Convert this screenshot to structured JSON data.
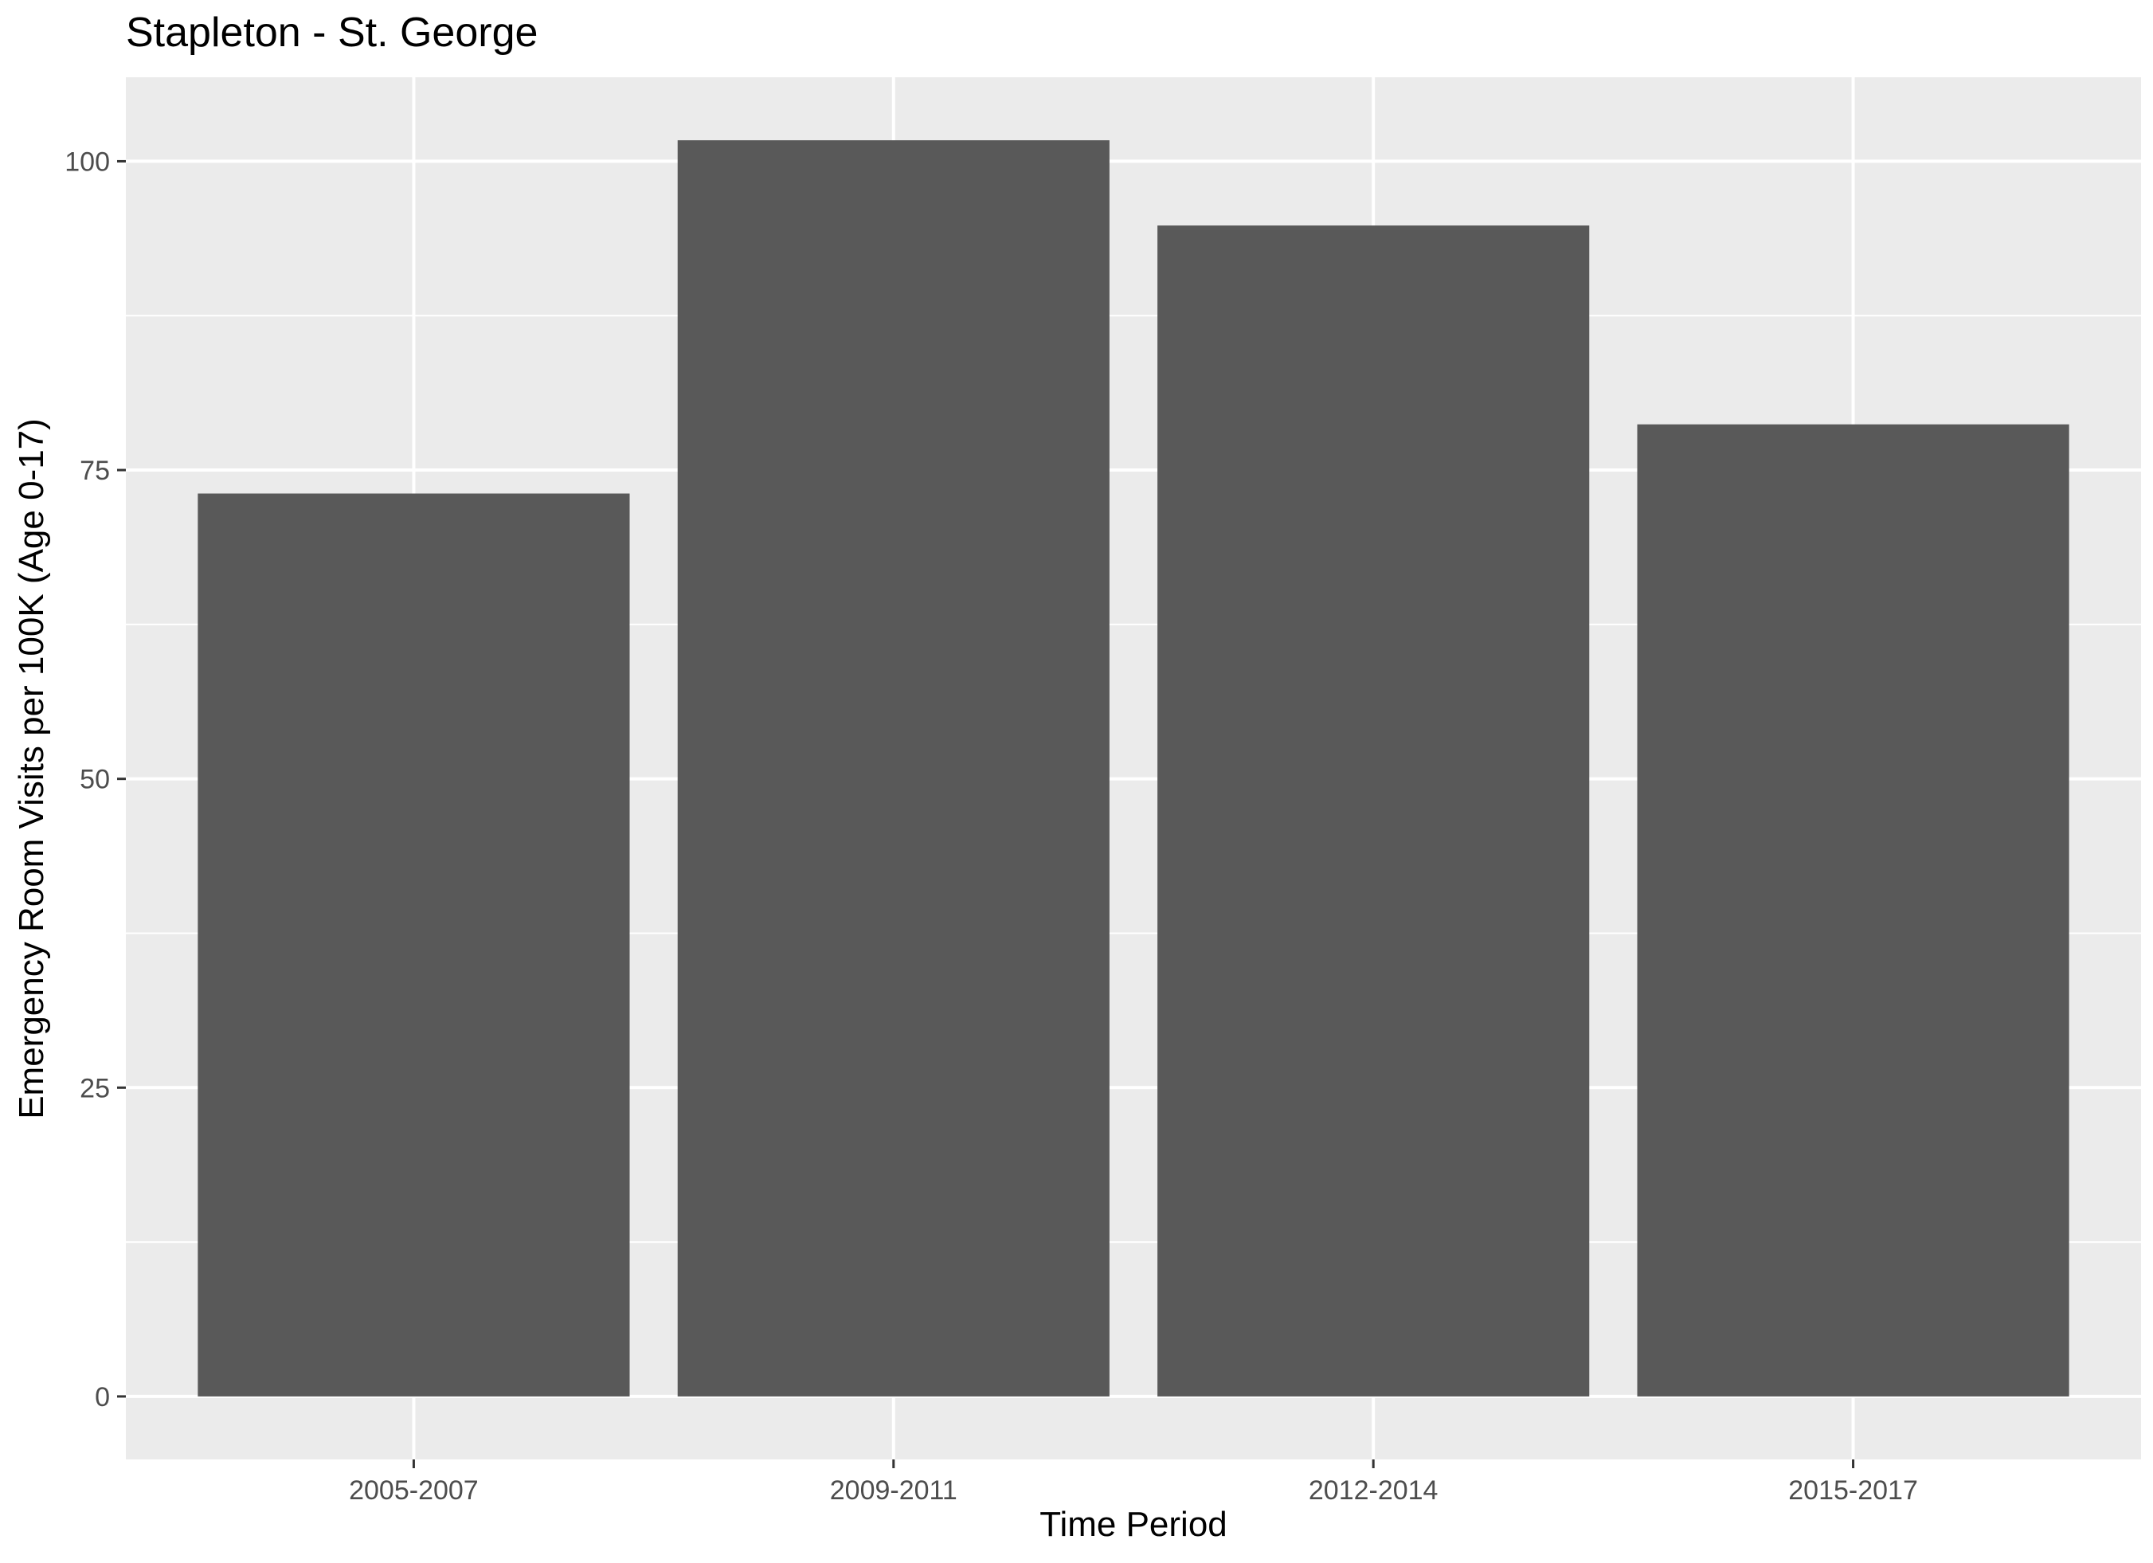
{
  "chart_data": {
    "type": "bar",
    "title": "Stapleton - St. George",
    "xlabel": "Time Period",
    "ylabel": "Emergency Room Visits per 100K (Age 0-17)",
    "categories": [
      "2005-2007",
      "2009-2011",
      "2012-2014",
      "2015-2017"
    ],
    "values": [
      73.1,
      101.7,
      94.8,
      78.7
    ],
    "ylim": [
      -5.1,
      106.8
    ],
    "yticks": [
      0,
      25,
      50,
      75,
      100
    ],
    "grid": true,
    "legend": "none",
    "colors": {
      "bar": "#595959",
      "panel": "#ebebeb",
      "grid": "#ffffff"
    }
  }
}
